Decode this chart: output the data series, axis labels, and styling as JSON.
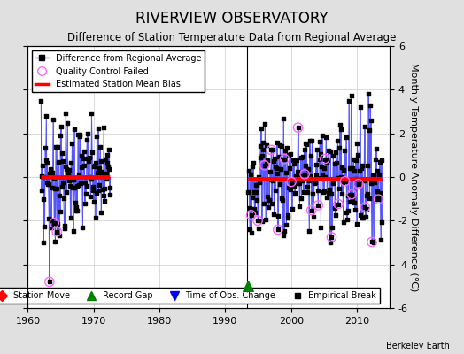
{
  "title": "RIVERVIEW OBSERVATORY",
  "subtitle": "Difference of Station Temperature Data from Regional Average",
  "ylabel": "Monthly Temperature Anomaly Difference (°C)",
  "xlabel_note": "Berkeley Earth",
  "xlim": [
    1960,
    2015
  ],
  "ylim": [
    -6,
    6
  ],
  "yticks": [
    -6,
    -4,
    -2,
    0,
    2,
    4,
    6
  ],
  "xticks": [
    1960,
    1970,
    1980,
    1990,
    2000,
    2010
  ],
  "segment1_xstart": 1962.0,
  "segment1_xend": 1972.5,
  "segment1_bias": 0.0,
  "segment2_xstart": 1993.5,
  "segment2_xend": 2013.8,
  "segment2_bias": -0.1,
  "gap_marker_x": 1993.5,
  "gap_marker_y": -5.0,
  "vline_x": 1993.3,
  "background_color": "#e0e0e0",
  "plot_bg_color": "#ffffff",
  "line_color": "#5555ff",
  "bias_color": "#ff0000",
  "qc_color": "#ff66ff",
  "grid_color": "#cccccc",
  "title_fontsize": 12,
  "subtitle_fontsize": 8.5,
  "ylabel_fontsize": 8,
  "tick_labelsize": 8
}
